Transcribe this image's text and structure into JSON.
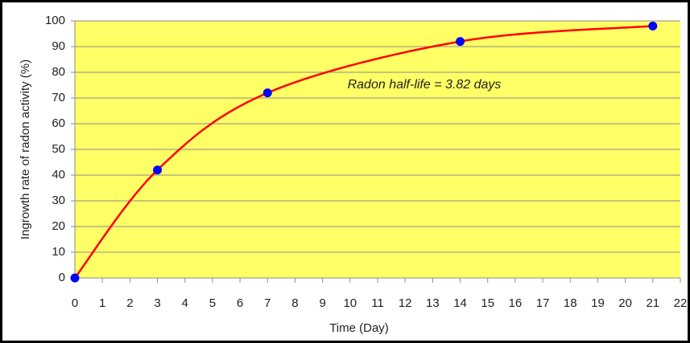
{
  "chart_data": {
    "type": "scatter",
    "x_label": "Time (Day)",
    "y_label": "Ingrowth rate of radon activity (%)",
    "annotation": "Radon half-life = 3.82 days",
    "x": [
      0,
      3,
      7,
      14,
      21
    ],
    "values": [
      0,
      42,
      72,
      92,
      98
    ],
    "line_color": "#ff0000",
    "marker_color": "#0000ff",
    "plot_background": "#ffff66",
    "xlim": [
      0,
      22
    ],
    "xticks": [
      0,
      1,
      2,
      3,
      4,
      5,
      6,
      7,
      8,
      9,
      10,
      11,
      12,
      13,
      14,
      15,
      16,
      17,
      18,
      19,
      20,
      21,
      22
    ],
    "ylim": [
      0,
      100
    ],
    "yticks": [
      0,
      10,
      20,
      30,
      40,
      50,
      60,
      70,
      80,
      90,
      100
    ],
    "grid": true,
    "smooth": true
  }
}
